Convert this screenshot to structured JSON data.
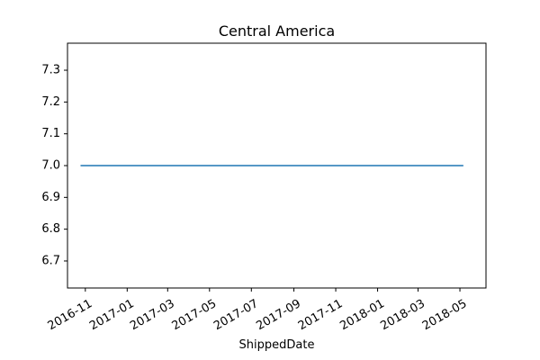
{
  "chart_data": {
    "type": "line",
    "title": "Central America",
    "xlabel": "ShippedDate",
    "ylabel": "",
    "x_type": "date",
    "xlim": [
      "2016-10-06",
      "2018-06-08"
    ],
    "ylim": [
      6.615,
      7.385
    ],
    "x_ticks": [
      "2016-11-01",
      "2017-01-01",
      "2017-03-01",
      "2017-05-01",
      "2017-07-01",
      "2017-09-01",
      "2017-11-01",
      "2018-01-01",
      "2018-03-01",
      "2018-05-01"
    ],
    "x_tick_labels": [
      "2016-11",
      "2017-01",
      "2017-03",
      "2017-05",
      "2017-07",
      "2017-09",
      "2017-11",
      "2018-01",
      "2018-03",
      "2018-05"
    ],
    "y_ticks": [
      6.7,
      6.8,
      6.9,
      7.0,
      7.1,
      7.2,
      7.3
    ],
    "y_tick_labels": [
      "6.7",
      "6.8",
      "6.9",
      "7.0",
      "7.1",
      "7.2",
      "7.3"
    ],
    "grid": false,
    "legend": "none",
    "series": [
      {
        "color": "#1f77b4",
        "x": [
          "2016-10-25",
          "2018-05-06"
        ],
        "y": [
          7.0,
          7.0
        ]
      }
    ]
  }
}
